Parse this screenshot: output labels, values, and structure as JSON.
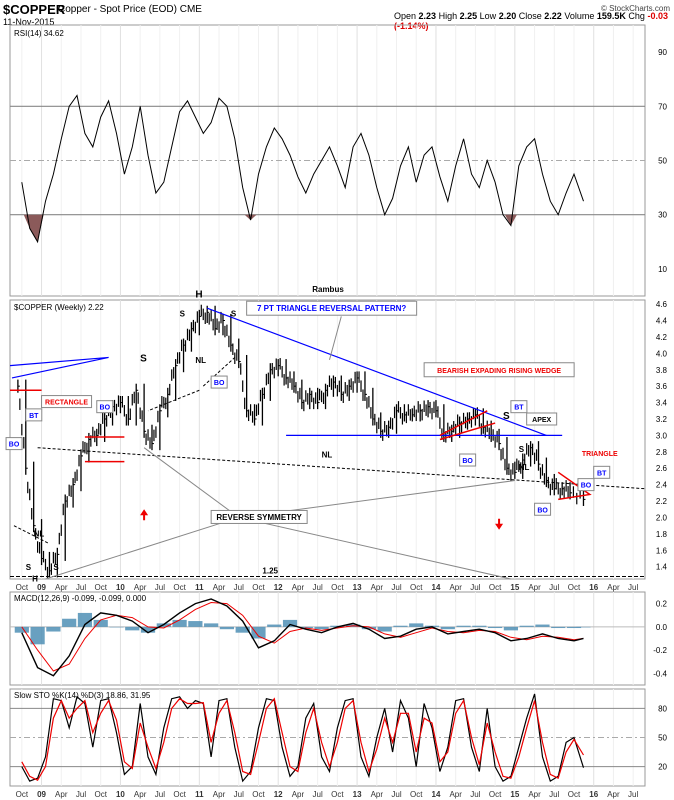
{
  "header": {
    "symbol": "$COPPER",
    "description": "Copper - Spot Price (EOD)",
    "exchange": "CME",
    "date": "11-Nov-2015",
    "open_label": "Open",
    "open": "2.23",
    "high_label": "High",
    "high": "2.25",
    "low_label": "Low",
    "low": "2.20",
    "close_label": "Close",
    "close": "2.22",
    "volume_label": "Volume",
    "volume": "159.5K",
    "chg_label": "Chg",
    "chg": "-0.03 (-1.14%)",
    "logo": "© StockCharts.com"
  },
  "chart_data": [
    {
      "type": "line",
      "panel": "RSI",
      "title": "RSI(14) 34.62",
      "yticks": [
        10,
        30,
        50,
        70,
        90
      ],
      "ylim": [
        0,
        100
      ],
      "reference_lines": [
        30,
        50,
        70
      ],
      "x": [
        2008.75,
        2008.85,
        2008.95,
        2009.05,
        2009.15,
        2009.25,
        2009.35,
        2009.45,
        2009.55,
        2009.65,
        2009.75,
        2009.85,
        2009.95,
        2010.05,
        2010.15,
        2010.25,
        2010.35,
        2010.45,
        2010.55,
        2010.65,
        2010.75,
        2010.85,
        2010.95,
        2011.05,
        2011.15,
        2011.25,
        2011.35,
        2011.45,
        2011.55,
        2011.65,
        2011.75,
        2011.85,
        2011.95,
        2012.05,
        2012.15,
        2012.25,
        2012.35,
        2012.45,
        2012.55,
        2012.65,
        2012.75,
        2012.85,
        2012.95,
        2013.05,
        2013.15,
        2013.25,
        2013.35,
        2013.45,
        2013.55,
        2013.65,
        2013.75,
        2013.85,
        2013.95,
        2014.05,
        2014.15,
        2014.25,
        2014.35,
        2014.45,
        2014.55,
        2014.65,
        2014.75,
        2014.85,
        2014.95,
        2015.05,
        2015.15,
        2015.25,
        2015.35,
        2015.45,
        2015.55,
        2015.65,
        2015.75,
        2015.87
      ],
      "values": [
        42,
        25,
        20,
        35,
        45,
        58,
        70,
        74,
        60,
        55,
        66,
        72,
        60,
        45,
        55,
        70,
        52,
        38,
        42,
        55,
        68,
        72,
        66,
        60,
        64,
        73,
        70,
        58,
        40,
        28,
        45,
        55,
        62,
        58,
        52,
        44,
        38,
        45,
        50,
        55,
        48,
        40,
        55,
        60,
        52,
        40,
        30,
        36,
        48,
        55,
        42,
        52,
        55,
        44,
        35,
        48,
        58,
        45,
        40,
        50,
        42,
        30,
        26,
        48,
        55,
        58,
        45,
        35,
        30,
        38,
        45,
        35
      ],
      "bottom_label": "Rambus"
    },
    {
      "type": "bar",
      "panel": "Price",
      "title": "$COPPER (Weekly) 2.22",
      "yticks": [
        1.4,
        1.6,
        1.8,
        2.0,
        2.2,
        2.4,
        2.6,
        2.8,
        3.0,
        3.2,
        3.4,
        3.6,
        3.8,
        4.0,
        4.2,
        4.4,
        4.6
      ],
      "ylim": [
        1.25,
        4.65
      ],
      "x": [
        2008.7,
        2008.8,
        2008.9,
        2009.0,
        2009.1,
        2009.2,
        2009.3,
        2009.4,
        2009.5,
        2009.6,
        2009.7,
        2009.8,
        2009.9,
        2010.0,
        2010.1,
        2010.2,
        2010.3,
        2010.4,
        2010.5,
        2010.6,
        2010.7,
        2010.8,
        2010.9,
        2011.0,
        2011.1,
        2011.2,
        2011.3,
        2011.4,
        2011.5,
        2011.6,
        2011.7,
        2011.8,
        2011.9,
        2012.0,
        2012.1,
        2012.2,
        2012.3,
        2012.4,
        2012.5,
        2012.6,
        2012.7,
        2012.8,
        2012.9,
        2013.0,
        2013.1,
        2013.2,
        2013.3,
        2013.4,
        2013.5,
        2013.6,
        2013.7,
        2013.8,
        2013.9,
        2014.0,
        2014.1,
        2014.2,
        2014.3,
        2014.4,
        2014.5,
        2014.6,
        2014.7,
        2014.8,
        2014.9,
        2015.0,
        2015.1,
        2015.2,
        2015.3,
        2015.4,
        2015.5,
        2015.6,
        2015.7,
        2015.87
      ],
      "values": [
        3.6,
        2.6,
        1.9,
        1.5,
        1.35,
        1.55,
        2.2,
        2.4,
        2.75,
        2.95,
        3.0,
        3.2,
        3.35,
        3.4,
        3.2,
        3.55,
        3.05,
        2.9,
        3.3,
        3.5,
        3.85,
        4.1,
        4.3,
        4.45,
        4.5,
        4.3,
        4.4,
        4.1,
        3.9,
        3.3,
        3.2,
        3.5,
        3.8,
        3.85,
        3.7,
        3.6,
        3.4,
        3.5,
        3.4,
        3.55,
        3.65,
        3.5,
        3.6,
        3.7,
        3.5,
        3.2,
        3.05,
        3.1,
        3.3,
        3.25,
        3.25,
        3.3,
        3.35,
        3.3,
        3.0,
        3.05,
        3.15,
        3.2,
        3.25,
        3.1,
        3.0,
        2.9,
        2.6,
        2.55,
        2.7,
        2.85,
        2.65,
        2.45,
        2.35,
        2.35,
        2.3,
        2.22
      ]
    },
    {
      "type": "line",
      "panel": "MACD",
      "title": "MACD(12,26,9) -0.099, -0.099, 0.000",
      "yticks": [
        -0.4,
        -0.2,
        0.0,
        0.2
      ],
      "ylim": [
        -0.5,
        0.3
      ],
      "x": [
        2008.75,
        2008.95,
        2009.15,
        2009.35,
        2009.55,
        2009.75,
        2009.95,
        2010.15,
        2010.35,
        2010.55,
        2010.75,
        2010.95,
        2011.15,
        2011.35,
        2011.55,
        2011.75,
        2011.95,
        2012.15,
        2012.35,
        2012.55,
        2012.75,
        2012.95,
        2013.15,
        2013.35,
        2013.55,
        2013.75,
        2013.95,
        2014.15,
        2014.35,
        2014.55,
        2014.75,
        2014.95,
        2015.15,
        2015.35,
        2015.55,
        2015.75,
        2015.87
      ],
      "series": [
        {
          "values": [
            -0.05,
            -0.35,
            -0.42,
            -0.25,
            0.02,
            0.12,
            0.1,
            0.05,
            -0.05,
            0.02,
            0.12,
            0.2,
            0.24,
            0.18,
            0.05,
            -0.18,
            -0.12,
            0.02,
            -0.02,
            -0.05,
            0.0,
            0.03,
            -0.02,
            -0.1,
            -0.08,
            -0.02,
            0.0,
            -0.06,
            -0.04,
            -0.02,
            -0.05,
            -0.12,
            -0.1,
            -0.06,
            -0.1,
            -0.12,
            -0.099
          ]
        },
        {
          "values": [
            0.0,
            -0.2,
            -0.38,
            -0.32,
            -0.1,
            0.06,
            0.1,
            0.08,
            0.0,
            -0.01,
            0.06,
            0.15,
            0.21,
            0.2,
            0.1,
            -0.08,
            -0.14,
            -0.04,
            -0.01,
            -0.03,
            -0.01,
            0.01,
            0.0,
            -0.06,
            -0.09,
            -0.05,
            -0.01,
            -0.04,
            -0.05,
            -0.03,
            -0.04,
            -0.09,
            -0.11,
            -0.08,
            -0.09,
            -0.11,
            -0.099
          ]
        }
      ],
      "histogram": [
        -0.05,
        -0.15,
        -0.04,
        0.07,
        0.12,
        0.06,
        0.0,
        -0.03,
        -0.05,
        0.03,
        0.06,
        0.05,
        0.03,
        -0.02,
        -0.05,
        -0.1,
        0.02,
        0.06,
        -0.01,
        -0.02,
        0.01,
        0.02,
        -0.02,
        -0.04,
        0.01,
        0.03,
        0.01,
        -0.02,
        0.01,
        0.01,
        -0.01,
        -0.03,
        0.01,
        0.02,
        -0.01,
        -0.01,
        0.0
      ]
    },
    {
      "type": "line",
      "panel": "Stochastic",
      "title": "Slow STO %K(14) %D(3) 18.86, 31.95",
      "yticks": [
        20,
        50,
        80
      ],
      "ylim": [
        0,
        100
      ],
      "reference_lines": [
        20,
        50,
        80
      ],
      "x": [
        2008.75,
        2008.85,
        2008.95,
        2009.05,
        2009.15,
        2009.25,
        2009.35,
        2009.45,
        2009.55,
        2009.65,
        2009.75,
        2009.85,
        2009.95,
        2010.05,
        2010.15,
        2010.25,
        2010.35,
        2010.45,
        2010.55,
        2010.65,
        2010.75,
        2010.85,
        2010.95,
        2011.05,
        2011.15,
        2011.25,
        2011.35,
        2011.45,
        2011.55,
        2011.65,
        2011.75,
        2011.85,
        2011.95,
        2012.05,
        2012.15,
        2012.25,
        2012.35,
        2012.45,
        2012.55,
        2012.65,
        2012.75,
        2012.85,
        2012.95,
        2013.05,
        2013.15,
        2013.25,
        2013.35,
        2013.45,
        2013.55,
        2013.65,
        2013.75,
        2013.85,
        2013.95,
        2014.05,
        2014.15,
        2014.25,
        2014.35,
        2014.45,
        2014.55,
        2014.65,
        2014.75,
        2014.85,
        2014.95,
        2015.05,
        2015.15,
        2015.25,
        2015.35,
        2015.45,
        2015.55,
        2015.65,
        2015.75,
        2015.87
      ],
      "series": [
        {
          "values": [
            20,
            5,
            8,
            30,
            90,
            88,
            60,
            92,
            85,
            40,
            88,
            90,
            55,
            12,
            20,
            85,
            30,
            12,
            60,
            90,
            92,
            80,
            88,
            85,
            30,
            88,
            90,
            40,
            5,
            15,
            60,
            90,
            88,
            40,
            10,
            20,
            70,
            85,
            30,
            15,
            60,
            88,
            90,
            30,
            10,
            50,
            80,
            35,
            88,
            70,
            20,
            85,
            60,
            15,
            40,
            88,
            90,
            40,
            15,
            80,
            20,
            5,
            10,
            40,
            70,
            95,
            30,
            5,
            10,
            45,
            50,
            18.86
          ]
        },
        {
          "values": [
            25,
            10,
            6,
            20,
            70,
            88,
            70,
            80,
            88,
            55,
            75,
            88,
            68,
            25,
            18,
            65,
            40,
            18,
            45,
            80,
            90,
            85,
            85,
            86,
            45,
            75,
            88,
            55,
            15,
            12,
            45,
            80,
            90,
            55,
            20,
            15,
            55,
            80,
            45,
            20,
            45,
            80,
            88,
            45,
            15,
            38,
            70,
            45,
            75,
            75,
            35,
            70,
            65,
            25,
            35,
            75,
            88,
            50,
            22,
            65,
            35,
            10,
            8,
            30,
            60,
            88,
            45,
            12,
            8,
            35,
            48,
            31.95
          ]
        }
      ]
    }
  ],
  "x_axis_labels": [
    "Oct",
    "09",
    "Apr",
    "Jul",
    "Oct",
    "10",
    "Apr",
    "Jul",
    "Oct",
    "11",
    "Apr",
    "Jul",
    "Oct",
    "12",
    "Apr",
    "Jul",
    "Oct",
    "13",
    "Apr",
    "Jul",
    "Oct",
    "14",
    "Apr",
    "Jul",
    "Oct",
    "15",
    "Apr",
    "Jul",
    "Oct",
    "16",
    "Apr",
    "Jul"
  ],
  "annotations": {
    "h_top": "H",
    "h_bottom": "H",
    "s_marks": [
      "S",
      "S",
      "S",
      "S",
      "S",
      "S",
      "S"
    ],
    "nl_marks": [
      "NL",
      "NL",
      "NL",
      "NL"
    ],
    "bo_marks": [
      "BO",
      "BO",
      "BO",
      "BO",
      "BO",
      "BO"
    ],
    "bt_marks": [
      "BT",
      "BT",
      "BT"
    ],
    "triangle_pattern": "7 PT TRIANGLE REVERSAL PATTERN?",
    "wedge": "BEARISH EXPADING RISING WEDGE",
    "rectangle": "RECTANGLE",
    "triangle": "TRIANGLE",
    "apex": "APEX",
    "reverse_symmetry": "REVERSE SYMMETRY",
    "level": "1.25"
  },
  "colors": {
    "price": "#000000",
    "blue_lines": "#0000ff",
    "red_lines": "#ee0000",
    "rsi_fill": "#8b5a5a",
    "macd_hist": "#4f8fb5",
    "sto_d": "#ee0000",
    "grid": "#bbbbbb"
  }
}
